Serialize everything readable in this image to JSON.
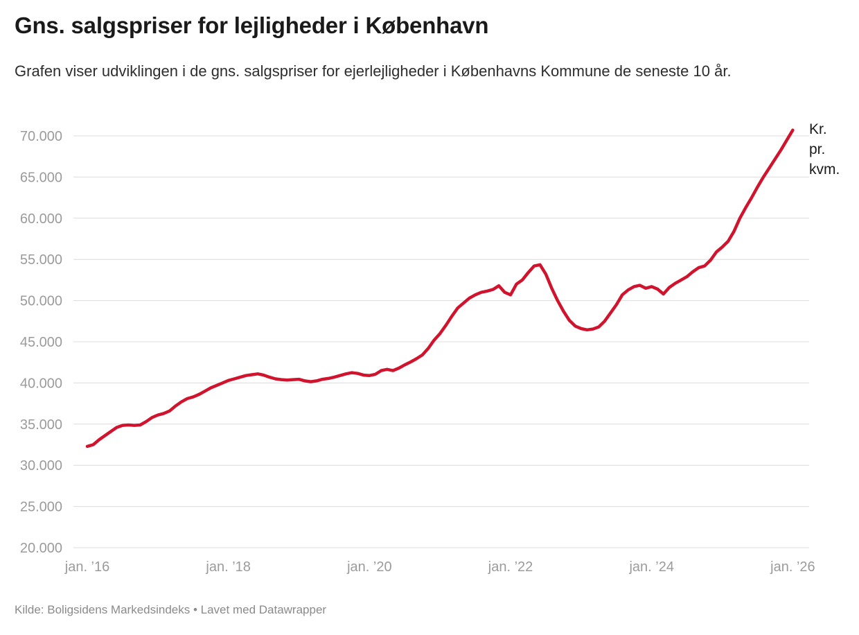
{
  "header": {
    "title": "Gns. salgspriser for lejligheder i København",
    "subtitle": "Grafen viser udviklingen i de gns. salgspriser for ejerlejligheder i Københavns Kommune de seneste 10 år."
  },
  "unit_label": {
    "lines": [
      "Kr.",
      "pr.",
      "kvm."
    ]
  },
  "footer": {
    "source": "Kilde: Boligsidens Markedsindeks • Lavet med Datawrapper"
  },
  "colors": {
    "line": "#d1142d",
    "grid": "#dcdcdc",
    "axis_text": "#9b9b9b",
    "title_text": "#1a1a1a",
    "body_text": "#2d2d2d",
    "footer_text": "#8a8a8a"
  },
  "chart_data": {
    "type": "line",
    "title": "Gns. salgspriser for lejligheder i København",
    "xlabel": "",
    "ylabel": "Kr. pr. kvm.",
    "ylim": [
      20000,
      70000
    ],
    "y_tick_step": 5000,
    "y_tick_labels": [
      "20.000",
      "25.000",
      "30.000",
      "35.000",
      "40.000",
      "45.000",
      "50.000",
      "55.000",
      "60.000",
      "65.000",
      "70.000"
    ],
    "x_tick_labels": [
      "jan. ’16",
      "jan. ’18",
      "jan. ’20",
      "jan. ’22",
      "jan. ’24",
      "jan. ’26"
    ],
    "x_tick_month_index": [
      0,
      24,
      48,
      72,
      96,
      120
    ],
    "grid": "horizontal",
    "legend": "none",
    "series": [
      {
        "name": "Gns. salgspris for ejerlejligheder, Københavns Kommune",
        "unit": "kr. pr. kvm.",
        "start": "2016-01",
        "end": "2026-01",
        "frequency": "monthly",
        "values": [
          32300,
          32500,
          33100,
          33600,
          34100,
          34600,
          34850,
          34900,
          34850,
          34900,
          35300,
          35800,
          36100,
          36300,
          36600,
          37200,
          37700,
          38100,
          38300,
          38600,
          39000,
          39400,
          39700,
          40000,
          40300,
          40500,
          40700,
          40900,
          41000,
          41100,
          40950,
          40700,
          40500,
          40400,
          40350,
          40400,
          40450,
          40250,
          40150,
          40250,
          40450,
          40550,
          40700,
          40900,
          41100,
          41250,
          41150,
          40950,
          40900,
          41050,
          41500,
          41650,
          41500,
          41800,
          42200,
          42550,
          42950,
          43400,
          44200,
          45200,
          46000,
          47000,
          48100,
          49100,
          49700,
          50300,
          50700,
          51000,
          51150,
          51350,
          51800,
          51000,
          50700,
          52000,
          52500,
          53400,
          54200,
          54350,
          53200,
          51500,
          50000,
          48700,
          47600,
          46900,
          46600,
          46450,
          46550,
          46800,
          47500,
          48500,
          49500,
          50700,
          51300,
          51700,
          51850,
          51500,
          51700,
          51400,
          50800,
          51600,
          52100,
          52500,
          52900,
          53500,
          54000,
          54200,
          54900,
          55900,
          56500,
          57200,
          58400,
          60000,
          61300,
          62500,
          63800,
          65000,
          66100,
          67200,
          68300,
          69500,
          70700
        ]
      }
    ]
  }
}
